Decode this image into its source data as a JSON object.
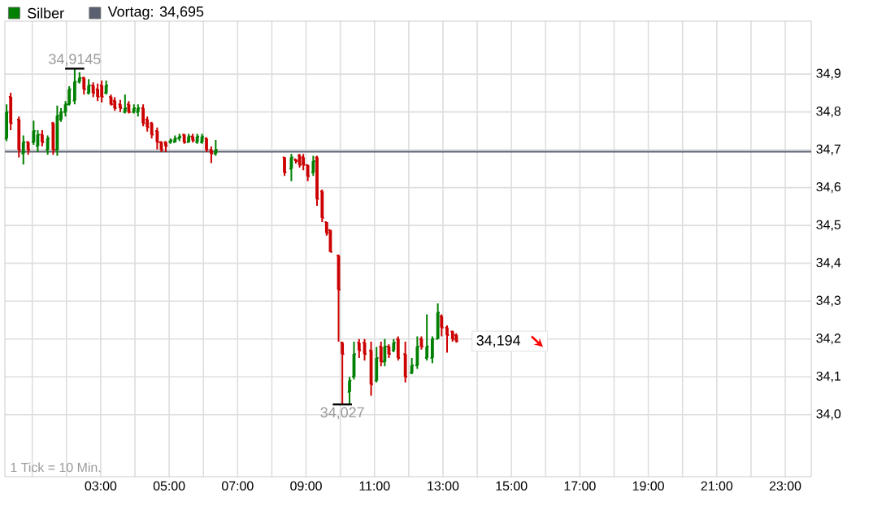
{
  "chart_data": {
    "type": "candlestick",
    "series": [
      {
        "name": "Silber",
        "color": "#008000",
        "x": [
          0.25,
          0.37,
          0.61,
          0.74,
          0.88,
          1.04,
          1.16,
          1.29,
          1.45,
          1.61,
          1.73,
          1.84,
          1.97,
          2.08,
          2.24,
          2.38,
          2.51,
          2.65,
          2.78,
          2.91,
          3.03,
          3.16,
          3.3,
          3.41,
          3.57,
          3.71,
          3.82,
          3.97,
          4.09,
          4.24,
          4.36,
          4.49,
          4.65,
          4.77,
          4.9,
          5.04,
          5.17,
          5.3,
          5.44,
          5.57,
          5.69,
          5.82,
          5.96,
          6.09,
          6.23,
          6.36,
          8.37,
          8.57,
          8.7,
          8.81,
          8.92,
          9.05,
          9.21,
          9.32,
          9.47,
          9.6,
          9.71,
          9.95,
          10.06,
          10.27,
          10.4,
          10.55,
          10.71,
          10.9,
          11.06,
          11.19,
          11.3,
          11.42,
          11.56,
          11.69,
          11.9,
          12.09,
          12.25,
          12.37,
          12.53,
          12.69,
          12.85,
          12.96,
          13.12,
          13.28,
          13.39
        ],
        "ohlc": [
          [
            34.73,
            34.82,
            34.723,
            34.8
          ],
          [
            34.84,
            34.851,
            34.752,
            34.77
          ],
          [
            34.78,
            34.788,
            34.68,
            34.7
          ],
          [
            34.69,
            34.738,
            34.661,
            34.72
          ],
          [
            34.72,
            34.723,
            34.687,
            34.7
          ],
          [
            34.72,
            34.777,
            34.713,
            34.75
          ],
          [
            34.71,
            34.752,
            34.694,
            34.74
          ],
          [
            34.74,
            34.752,
            34.709,
            34.72
          ],
          [
            34.7,
            34.738,
            34.687,
            34.73
          ],
          [
            34.77,
            34.774,
            34.687,
            34.7
          ],
          [
            34.7,
            34.817,
            34.684,
            34.79
          ],
          [
            34.78,
            34.81,
            34.774,
            34.8
          ],
          [
            34.8,
            34.829,
            34.788,
            34.82
          ],
          [
            34.82,
            34.868,
            34.817,
            34.86
          ],
          [
            34.83,
            34.9145,
            34.82,
            34.88
          ],
          [
            34.88,
            34.905,
            34.875,
            34.89
          ],
          [
            34.89,
            34.893,
            34.846,
            34.86
          ],
          [
            34.85,
            34.887,
            34.846,
            34.87
          ],
          [
            34.87,
            34.878,
            34.839,
            34.85
          ],
          [
            34.86,
            34.875,
            34.829,
            34.84
          ],
          [
            34.87,
            34.883,
            34.825,
            34.84
          ],
          [
            34.85,
            34.883,
            34.846,
            34.87
          ],
          [
            34.84,
            34.846,
            34.817,
            34.82
          ],
          [
            34.83,
            34.839,
            34.803,
            34.81
          ],
          [
            34.82,
            34.832,
            34.8,
            34.81
          ],
          [
            34.8,
            34.846,
            34.796,
            34.81
          ],
          [
            34.82,
            34.829,
            34.796,
            34.8
          ],
          [
            34.8,
            34.82,
            34.796,
            34.81
          ],
          [
            34.8,
            34.82,
            34.788,
            34.81
          ],
          [
            34.81,
            34.82,
            34.762,
            34.77
          ],
          [
            34.78,
            34.788,
            34.748,
            34.76
          ],
          [
            34.77,
            34.774,
            34.73,
            34.74
          ],
          [
            34.75,
            34.759,
            34.701,
            34.72
          ],
          [
            34.72,
            34.723,
            34.694,
            34.7
          ],
          [
            34.72,
            34.723,
            34.694,
            34.71
          ],
          [
            34.72,
            34.73,
            34.716,
            34.725
          ],
          [
            34.72,
            34.738,
            34.719,
            34.73
          ],
          [
            34.73,
            34.742,
            34.723,
            34.735
          ],
          [
            34.74,
            34.742,
            34.716,
            34.72
          ],
          [
            34.72,
            34.742,
            34.719,
            34.735
          ],
          [
            34.735,
            34.742,
            34.719,
            34.725
          ],
          [
            34.72,
            34.742,
            34.716,
            34.735
          ],
          [
            34.72,
            34.742,
            34.716,
            34.735
          ],
          [
            34.73,
            34.733,
            34.694,
            34.7
          ],
          [
            34.7,
            34.709,
            34.665,
            34.69
          ],
          [
            34.69,
            34.726,
            34.684,
            34.7
          ],
          [
            34.68,
            34.681,
            34.631,
            34.64
          ],
          [
            34.65,
            34.689,
            34.617,
            34.68
          ],
          [
            34.675,
            34.675,
            34.664,
            34.67
          ],
          [
            34.685,
            34.689,
            34.653,
            34.66
          ],
          [
            34.68,
            34.689,
            34.646,
            34.66
          ],
          [
            34.66,
            34.66,
            34.617,
            34.63
          ],
          [
            34.64,
            34.684,
            34.631,
            34.67
          ],
          [
            34.68,
            34.684,
            34.552,
            34.57
          ],
          [
            34.59,
            34.595,
            34.509,
            34.52
          ],
          [
            34.509,
            34.509,
            34.473,
            34.48
          ],
          [
            34.488,
            34.488,
            34.43,
            34.43
          ],
          [
            34.42,
            34.423,
            34.193,
            34.33
          ],
          [
            34.19,
            34.193,
            34.027,
            34.16
          ],
          [
            34.06,
            34.1,
            34.029,
            34.09
          ],
          [
            34.1,
            34.193,
            34.093,
            34.16
          ],
          [
            34.19,
            34.2,
            34.15,
            34.17
          ],
          [
            34.19,
            34.2,
            34.143,
            34.16
          ],
          [
            34.17,
            34.193,
            34.05,
            34.08
          ],
          [
            34.09,
            34.179,
            34.085,
            34.15
          ],
          [
            34.18,
            34.193,
            34.128,
            34.14
          ],
          [
            34.14,
            34.2,
            34.128,
            34.18
          ],
          [
            34.18,
            34.186,
            34.15,
            34.16
          ],
          [
            34.17,
            34.2,
            34.165,
            34.19
          ],
          [
            34.2,
            34.207,
            34.143,
            34.15
          ],
          [
            34.16,
            34.193,
            34.085,
            34.1
          ],
          [
            34.11,
            34.15,
            34.107,
            34.13
          ],
          [
            34.13,
            34.207,
            34.121,
            34.18
          ],
          [
            34.2,
            34.207,
            34.172,
            34.18
          ],
          [
            34.15,
            34.265,
            34.143,
            34.18
          ],
          [
            34.15,
            34.207,
            34.136,
            34.2
          ],
          [
            34.2,
            34.294,
            34.2,
            34.27
          ],
          [
            34.26,
            34.265,
            34.207,
            34.23
          ],
          [
            34.23,
            34.236,
            34.164,
            34.21
          ],
          [
            34.22,
            34.222,
            34.193,
            34.2
          ],
          [
            34.21,
            34.215,
            34.19,
            34.194
          ]
        ],
        "colors": [
          "#008000",
          "#cc0000",
          "#cc0000",
          "#008000",
          "#cc0000",
          "#008000",
          "#008000",
          "#cc0000",
          "#008000",
          "#cc0000",
          "#008000",
          "#008000",
          "#008000",
          "#008000",
          "#008000",
          "#008000",
          "#cc0000",
          "#008000",
          "#cc0000",
          "#cc0000",
          "#cc0000",
          "#008000",
          "#cc0000",
          "#cc0000",
          "#cc0000",
          "#008000",
          "#cc0000",
          "#008000",
          "#008000",
          "#cc0000",
          "#cc0000",
          "#cc0000",
          "#cc0000",
          "#cc0000",
          "#cc0000",
          "#008000",
          "#008000",
          "#008000",
          "#cc0000",
          "#008000",
          "#cc0000",
          "#008000",
          "#008000",
          "#cc0000",
          "#cc0000",
          "#008000",
          "#cc0000",
          "#008000",
          "#cc0000",
          "#cc0000",
          "#cc0000",
          "#cc0000",
          "#008000",
          "#cc0000",
          "#cc0000",
          "#cc0000",
          "#cc0000",
          "#cc0000",
          "#cc0000",
          "#008000",
          "#008000",
          "#cc0000",
          "#cc0000",
          "#cc0000",
          "#008000",
          "#cc0000",
          "#008000",
          "#cc0000",
          "#008000",
          "#cc0000",
          "#cc0000",
          "#008000",
          "#008000",
          "#cc0000",
          "#008000",
          "#008000",
          "#008000",
          "#cc0000",
          "#cc0000",
          "#cc0000",
          "#cc0000"
        ]
      }
    ],
    "xlim": [
      0.2,
      23.76
    ],
    "ylim": [
      33.836,
      35.04
    ],
    "xticks": [
      {
        "value": 1,
        "label": null
      },
      {
        "value": 2,
        "label": null
      },
      {
        "value": 3,
        "label": "03:00"
      },
      {
        "value": 4,
        "label": null
      },
      {
        "value": 5,
        "label": "05:00"
      },
      {
        "value": 6,
        "label": null
      },
      {
        "value": 7,
        "label": "07:00"
      },
      {
        "value": 8,
        "label": null
      },
      {
        "value": 9,
        "label": "09:00"
      },
      {
        "value": 10,
        "label": null
      },
      {
        "value": 11,
        "label": "11:00"
      },
      {
        "value": 12,
        "label": null
      },
      {
        "value": 13,
        "label": "13:00"
      },
      {
        "value": 14,
        "label": null
      },
      {
        "value": 15,
        "label": "15:00"
      },
      {
        "value": 16,
        "label": null
      },
      {
        "value": 17,
        "label": "17:00"
      },
      {
        "value": 18,
        "label": null
      },
      {
        "value": 19,
        "label": "19:00"
      },
      {
        "value": 20,
        "label": null
      },
      {
        "value": 21,
        "label": "21:00"
      },
      {
        "value": 22,
        "label": null
      },
      {
        "value": 23,
        "label": "23:00"
      }
    ],
    "yticks": [
      {
        "value": 34.0,
        "label": "34,0"
      },
      {
        "value": 34.1,
        "label": "34,1"
      },
      {
        "value": 34.2,
        "label": "34,2"
      },
      {
        "value": 34.3,
        "label": "34,3"
      },
      {
        "value": 34.4,
        "label": "34,4"
      },
      {
        "value": 34.5,
        "label": "34,5"
      },
      {
        "value": 34.6,
        "label": "34,6"
      },
      {
        "value": 34.7,
        "label": "34,7"
      },
      {
        "value": 34.8,
        "label": "34,8"
      },
      {
        "value": 34.9,
        "label": "34,9"
      }
    ],
    "ref_lines": [
      {
        "axis": "y",
        "value": 34.695,
        "label": "Vortag: 34,695",
        "color": "#5a6070"
      }
    ],
    "annotations": [
      {
        "text": "34,9145",
        "x": 2.24,
        "y": 34.9145
      },
      {
        "text": "34,027",
        "x": 10.06,
        "y": 34.027
      },
      {
        "text": "34,194",
        "x": 13.39,
        "y": 34.194
      },
      "1 Tick = 10 Min."
    ],
    "grid": true,
    "legend": "top left"
  }
}
